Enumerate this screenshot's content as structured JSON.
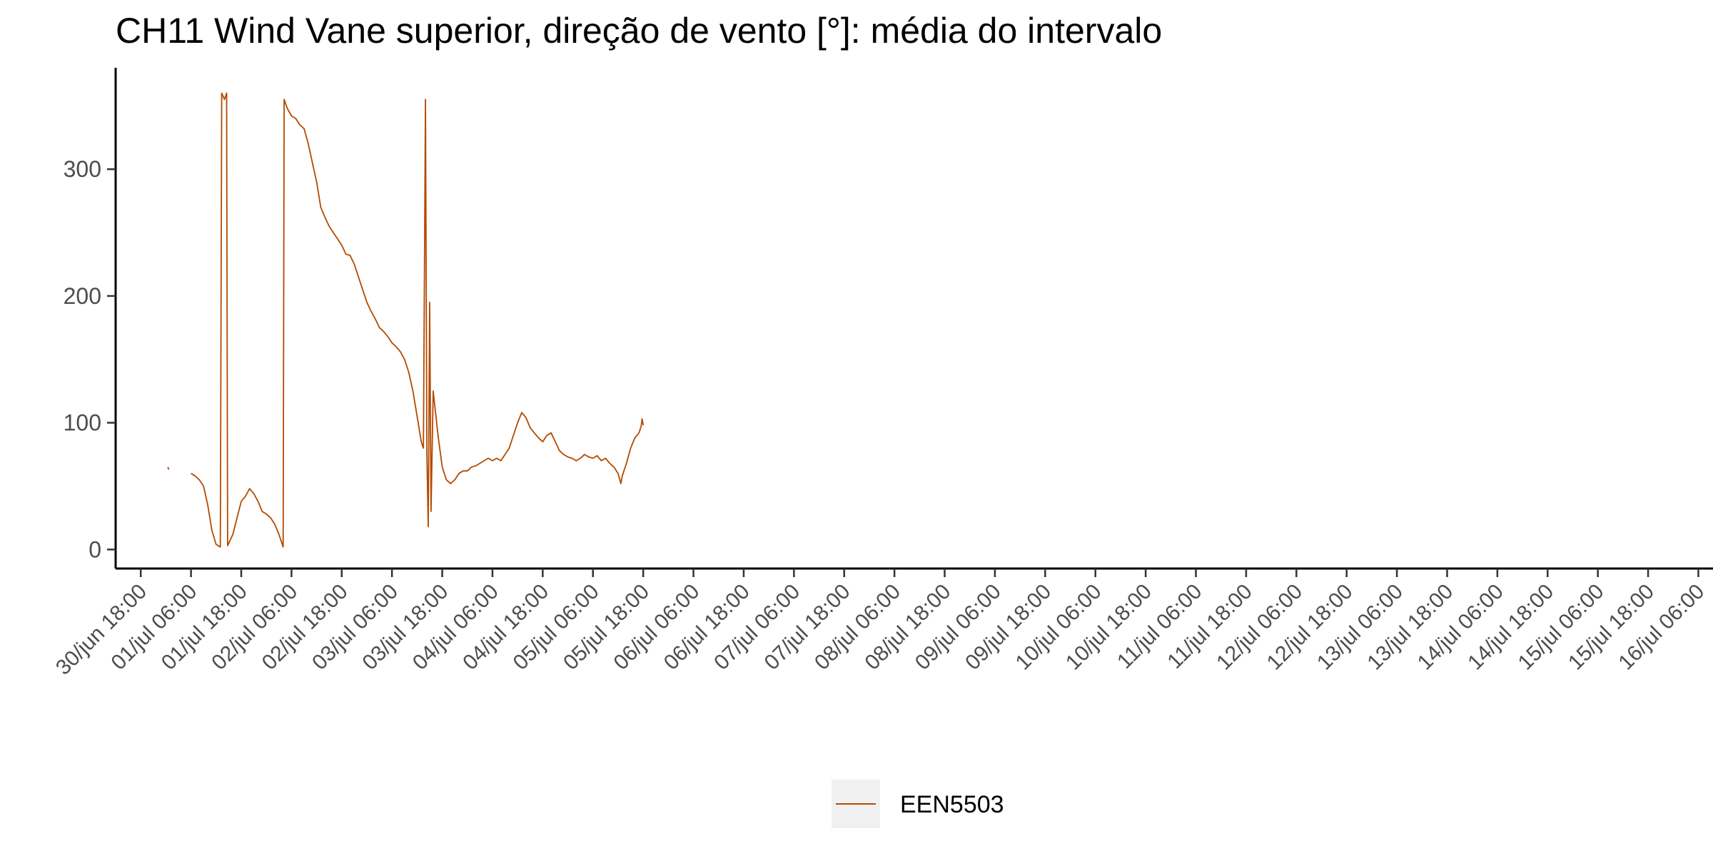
{
  "chart_data": {
    "type": "line",
    "title": "CH11 Wind Vane superior, direção de vento [°]: média do intervalo",
    "xlabel": "",
    "ylabel": "",
    "ylim": [
      -15,
      380
    ],
    "yticks": [
      0,
      100,
      200,
      300
    ],
    "xlim": [
      "2021-06-30T12:00",
      "2021-07-16T09:30"
    ],
    "xtick_values": [
      "2021-06-30T18:00",
      "2021-07-01T06:00",
      "2021-07-01T18:00",
      "2021-07-02T06:00",
      "2021-07-02T18:00",
      "2021-07-03T06:00",
      "2021-07-03T18:00",
      "2021-07-04T06:00",
      "2021-07-04T18:00",
      "2021-07-05T06:00",
      "2021-07-05T18:00",
      "2021-07-06T06:00",
      "2021-07-06T18:00",
      "2021-07-07T06:00",
      "2021-07-07T18:00",
      "2021-07-08T06:00",
      "2021-07-08T18:00",
      "2021-07-09T06:00",
      "2021-07-09T18:00",
      "2021-07-10T06:00",
      "2021-07-10T18:00",
      "2021-07-11T06:00",
      "2021-07-11T18:00",
      "2021-07-12T06:00",
      "2021-07-12T18:00",
      "2021-07-13T06:00",
      "2021-07-13T18:00",
      "2021-07-14T06:00",
      "2021-07-14T18:00",
      "2021-07-15T06:00",
      "2021-07-15T18:00",
      "2021-07-16T06:00"
    ],
    "xtick_labels": [
      "30/jun 18:00",
      "01/jul 06:00",
      "01/jul 18:00",
      "02/jul 06:00",
      "02/jul 18:00",
      "03/jul 06:00",
      "03/jul 18:00",
      "04/jul 06:00",
      "04/jul 18:00",
      "05/jul 06:00",
      "05/jul 18:00",
      "06/jul 06:00",
      "06/jul 18:00",
      "07/jul 06:00",
      "07/jul 18:00",
      "08/jul 06:00",
      "08/jul 18:00",
      "09/jul 06:00",
      "09/jul 18:00",
      "10/jul 06:00",
      "10/jul 18:00",
      "11/jul 06:00",
      "11/jul 18:00",
      "12/jul 06:00",
      "12/jul 18:00",
      "13/jul 06:00",
      "13/jul 18:00",
      "14/jul 06:00",
      "14/jul 18:00",
      "15/jul 06:00",
      "15/jul 18:00",
      "16/jul 06:00"
    ],
    "grid": false,
    "legend_position": "bottom",
    "series": [
      {
        "name": "EEN5503",
        "color": "#b34a00",
        "segments": [
          [
            [
              "2021-07-01T00:30",
              65
            ],
            [
              "2021-07-01T00:40",
              63
            ]
          ],
          [
            [
              "2021-07-01T06:00",
              60
            ],
            [
              "2021-07-01T07:00",
              58
            ],
            [
              "2021-07-01T08:00",
              55
            ],
            [
              "2021-07-01T09:00",
              50
            ],
            [
              "2021-07-01T10:00",
              35
            ],
            [
              "2021-07-01T11:00",
              15
            ],
            [
              "2021-07-01T12:00",
              4
            ],
            [
              "2021-07-01T13:00",
              2
            ],
            [
              "2021-07-01T13:20",
              360
            ],
            [
              "2021-07-01T14:00",
              355
            ],
            [
              "2021-07-01T14:30",
              360
            ],
            [
              "2021-07-01T14:45",
              3
            ],
            [
              "2021-07-01T16:00",
              12
            ],
            [
              "2021-07-01T17:00",
              25
            ],
            [
              "2021-07-01T18:00",
              38
            ],
            [
              "2021-07-01T19:00",
              42
            ],
            [
              "2021-07-01T20:00",
              48
            ],
            [
              "2021-07-01T21:00",
              44
            ],
            [
              "2021-07-01T22:00",
              38
            ],
            [
              "2021-07-01T23:00",
              30
            ],
            [
              "2021-07-02T00:00",
              28
            ],
            [
              "2021-07-02T01:00",
              25
            ],
            [
              "2021-07-02T02:00",
              20
            ],
            [
              "2021-07-02T03:00",
              12
            ],
            [
              "2021-07-02T04:00",
              2
            ],
            [
              "2021-07-02T04:15",
              355
            ],
            [
              "2021-07-02T05:00",
              348
            ],
            [
              "2021-07-02T06:00",
              342
            ],
            [
              "2021-07-02T07:00",
              340
            ],
            [
              "2021-07-02T08:00",
              335
            ],
            [
              "2021-07-02T09:00",
              332
            ],
            [
              "2021-07-02T10:00",
              320
            ],
            [
              "2021-07-02T11:00",
              305
            ],
            [
              "2021-07-02T12:00",
              290
            ],
            [
              "2021-07-02T13:00",
              270
            ],
            [
              "2021-07-02T14:00",
              262
            ],
            [
              "2021-07-02T15:00",
              255
            ],
            [
              "2021-07-02T16:00",
              250
            ],
            [
              "2021-07-02T17:00",
              245
            ],
            [
              "2021-07-02T18:00",
              240
            ],
            [
              "2021-07-02T19:00",
              233
            ],
            [
              "2021-07-02T20:00",
              232
            ],
            [
              "2021-07-02T21:00",
              225
            ],
            [
              "2021-07-02T22:00",
              215
            ],
            [
              "2021-07-02T23:00",
              205
            ],
            [
              "2021-07-03T00:00",
              195
            ],
            [
              "2021-07-03T01:00",
              188
            ],
            [
              "2021-07-03T02:00",
              182
            ],
            [
              "2021-07-03T03:00",
              175
            ],
            [
              "2021-07-03T04:00",
              172
            ],
            [
              "2021-07-03T05:00",
              168
            ],
            [
              "2021-07-03T06:00",
              163
            ],
            [
              "2021-07-03T07:00",
              160
            ],
            [
              "2021-07-03T08:00",
              156
            ],
            [
              "2021-07-03T09:00",
              150
            ],
            [
              "2021-07-03T10:00",
              140
            ],
            [
              "2021-07-03T11:00",
              125
            ],
            [
              "2021-07-03T12:00",
              105
            ],
            [
              "2021-07-03T13:00",
              85
            ],
            [
              "2021-07-03T13:30",
              80
            ],
            [
              "2021-07-03T14:00",
              355
            ],
            [
              "2021-07-03T14:20",
              75
            ],
            [
              "2021-07-03T14:40",
              18
            ],
            [
              "2021-07-03T15:00",
              195
            ],
            [
              "2021-07-03T15:20",
              30
            ],
            [
              "2021-07-03T15:50",
              125
            ],
            [
              "2021-07-03T16:30",
              105
            ],
            [
              "2021-07-03T17:00",
              90
            ],
            [
              "2021-07-03T18:00",
              65
            ],
            [
              "2021-07-03T19:00",
              55
            ],
            [
              "2021-07-03T20:00",
              52
            ],
            [
              "2021-07-03T21:00",
              55
            ],
            [
              "2021-07-03T22:00",
              60
            ],
            [
              "2021-07-03T23:00",
              62
            ],
            [
              "2021-07-04T00:00",
              62
            ],
            [
              "2021-07-04T01:00",
              65
            ],
            [
              "2021-07-04T02:00",
              66
            ],
            [
              "2021-07-04T03:00",
              68
            ],
            [
              "2021-07-04T04:00",
              70
            ],
            [
              "2021-07-04T05:00",
              72
            ],
            [
              "2021-07-04T06:00",
              70
            ],
            [
              "2021-07-04T07:00",
              72
            ],
            [
              "2021-07-04T08:00",
              70
            ],
            [
              "2021-07-04T09:00",
              75
            ],
            [
              "2021-07-04T10:00",
              80
            ],
            [
              "2021-07-04T11:00",
              90
            ],
            [
              "2021-07-04T12:00",
              100
            ],
            [
              "2021-07-04T13:00",
              108
            ],
            [
              "2021-07-04T14:00",
              104
            ],
            [
              "2021-07-04T15:00",
              96
            ],
            [
              "2021-07-04T16:00",
              92
            ],
            [
              "2021-07-04T17:00",
              88
            ],
            [
              "2021-07-04T18:00",
              85
            ],
            [
              "2021-07-04T19:00",
              90
            ],
            [
              "2021-07-04T20:00",
              92
            ],
            [
              "2021-07-04T21:00",
              85
            ],
            [
              "2021-07-04T22:00",
              78
            ],
            [
              "2021-07-04T23:00",
              75
            ],
            [
              "2021-07-05T00:00",
              73
            ],
            [
              "2021-07-05T01:00",
              72
            ],
            [
              "2021-07-05T02:00",
              70
            ],
            [
              "2021-07-05T03:00",
              72
            ],
            [
              "2021-07-05T04:00",
              75
            ],
            [
              "2021-07-05T05:00",
              73
            ],
            [
              "2021-07-05T06:00",
              72
            ],
            [
              "2021-07-05T07:00",
              74
            ],
            [
              "2021-07-05T08:00",
              70
            ],
            [
              "2021-07-05T09:00",
              72
            ],
            [
              "2021-07-05T10:00",
              68
            ],
            [
              "2021-07-05T11:00",
              65
            ],
            [
              "2021-07-05T12:00",
              60
            ],
            [
              "2021-07-05T12:40",
              52
            ],
            [
              "2021-07-05T13:00",
              58
            ],
            [
              "2021-07-05T14:00",
              68
            ],
            [
              "2021-07-05T15:00",
              80
            ],
            [
              "2021-07-05T16:00",
              88
            ],
            [
              "2021-07-05T17:00",
              92
            ],
            [
              "2021-07-05T17:30",
              97
            ],
            [
              "2021-07-05T17:45",
              103
            ],
            [
              "2021-07-05T18:00",
              98
            ]
          ]
        ]
      }
    ]
  }
}
